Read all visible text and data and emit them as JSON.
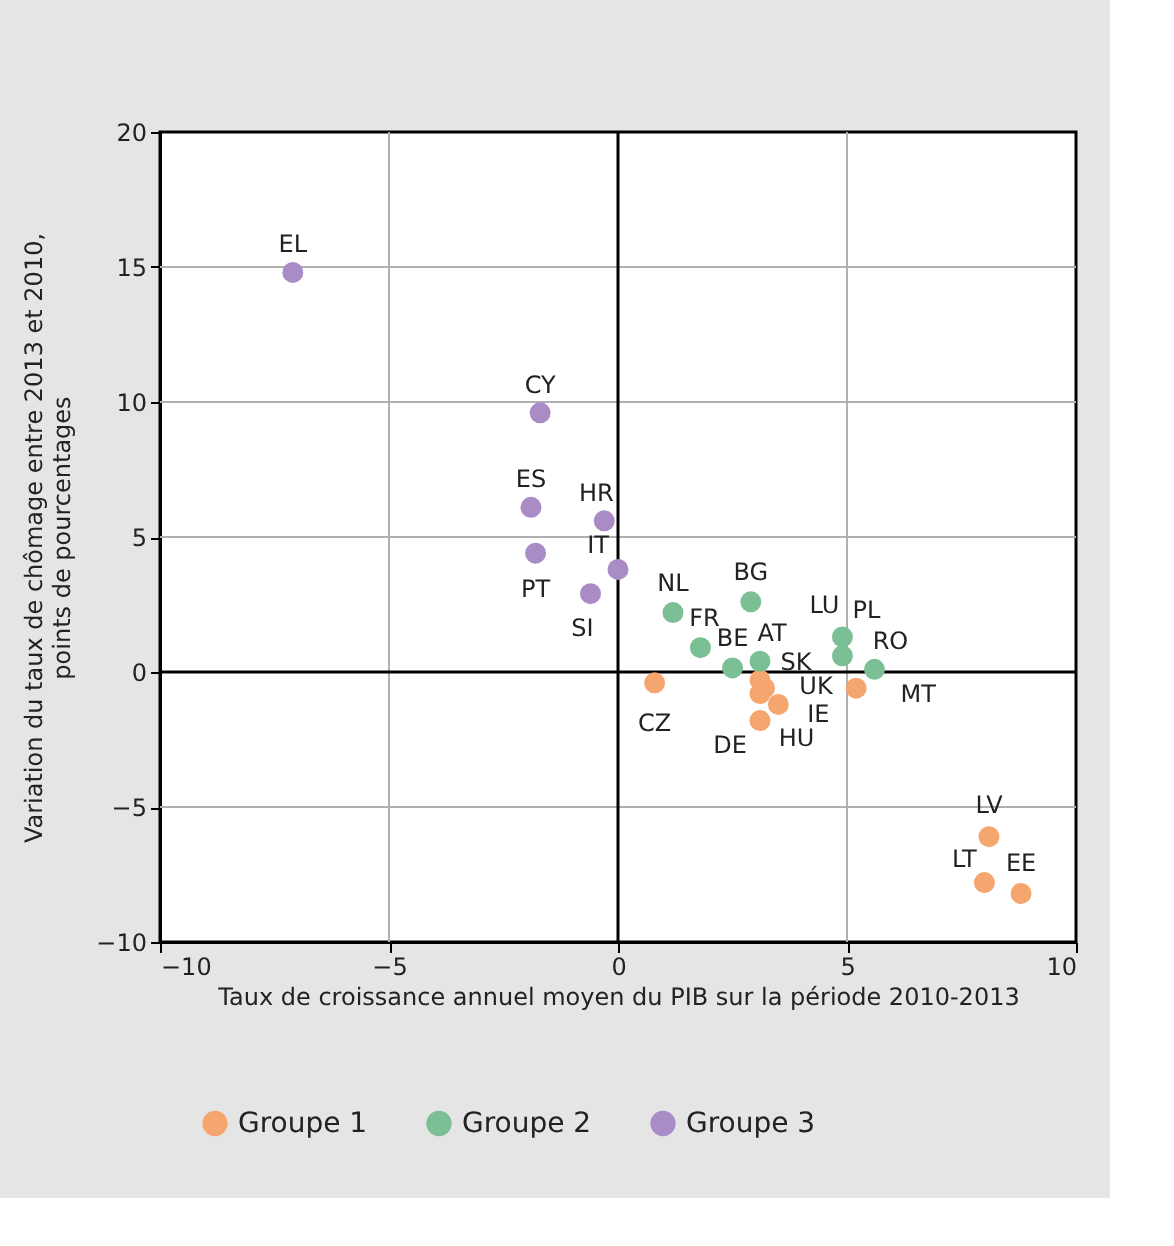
{
  "chart_data": {
    "type": "scatter",
    "xlabel": "Taux de croissance annuel moyen du PIB sur la période 2010-2013",
    "ylabel": "Variation du taux de chômage entre 2013 et 2010,\npoints de pourcentages",
    "xlim": [
      -10,
      10
    ],
    "xticks": [
      {
        "value": -10,
        "label": "−10"
      },
      {
        "value": -5,
        "label": "−5"
      },
      0,
      5,
      10
    ],
    "ylim": [
      -10,
      20
    ],
    "yticks": [
      {
        "value": -10,
        "label": "−10"
      },
      {
        "value": -5,
        "label": "−5"
      },
      0,
      5,
      10,
      15,
      20
    ],
    "grid": true,
    "legend": "bottom",
    "marker": "circle",
    "series": [
      {
        "name": "Groupe 1",
        "color": "#f5a66f",
        "x": [
          0.8,
          3.1,
          3.2,
          3.1,
          3.5,
          3.1,
          5.2,
          8.1,
          8.0,
          8.8
        ],
        "values": [
          -0.4,
          -0.3,
          -0.6,
          -0.8,
          -1.2,
          -1.8,
          -0.6,
          -6.1,
          -7.8,
          -8.2
        ],
        "value_labels": [
          "CZ",
          "SK",
          "HU",
          "UK",
          "IE",
          "DE",
          "MT",
          "LV",
          "LT",
          "EE"
        ]
      },
      {
        "name": "Groupe 2",
        "color": "#7bbf94",
        "x": [
          1.2,
          2.9,
          1.8,
          2.5,
          3.1,
          4.9,
          4.9,
          5.6
        ],
        "values": [
          2.2,
          2.6,
          0.9,
          0.15,
          0.4,
          1.3,
          0.6,
          0.1
        ],
        "value_labels": [
          "NL",
          "BG",
          "FR",
          "BE",
          "AT",
          "LU",
          "PL",
          "RO"
        ]
      },
      {
        "name": "Groupe 3",
        "color": "#a98bc5",
        "x": [
          -7.1,
          -1.7,
          -1.9,
          -1.8,
          -0.3,
          0.0,
          -0.6
        ],
        "values": [
          14.8,
          9.6,
          6.1,
          4.4,
          5.6,
          3.8,
          2.9
        ],
        "value_labels": [
          "EL",
          "CY",
          "ES",
          "PT",
          "HR",
          "IT",
          "SI"
        ]
      }
    ]
  }
}
